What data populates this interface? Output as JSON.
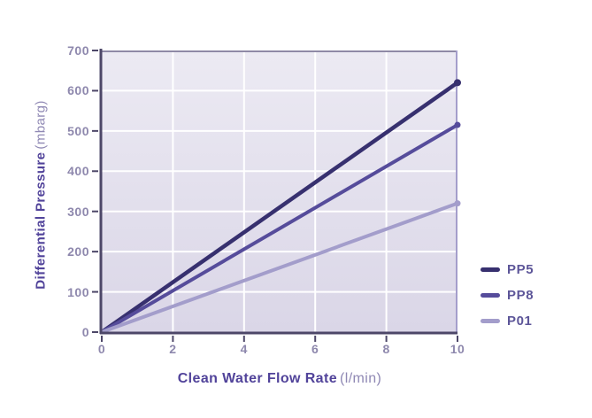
{
  "labels": {
    "y_title": "Differential Pressure",
    "y_unit": "(mbarg)",
    "x_title": "Clean Water Flow Rate",
    "x_unit": "(l/min)"
  },
  "chart_data": {
    "type": "line",
    "title": "",
    "xlabel": "Clean Water Flow Rate (l/min)",
    "ylabel": "Differential Pressure (mbarg)",
    "xlim": [
      0,
      10
    ],
    "ylim": [
      0,
      700
    ],
    "xticks": [
      0,
      2,
      4,
      6,
      8,
      10
    ],
    "yticks": [
      0,
      100,
      200,
      300,
      400,
      500,
      600,
      700
    ],
    "grid": true,
    "legend_position": "right",
    "x": [
      0,
      10
    ],
    "series": [
      {
        "name": "PP5",
        "values": [
          0,
          620
        ],
        "color": "#37306f",
        "stroke_width": 4.5,
        "dot_radius": 4
      },
      {
        "name": "PP8",
        "values": [
          0,
          515
        ],
        "color": "#564c9b",
        "stroke_width": 4,
        "dot_radius": 3.5
      },
      {
        "name": "P01",
        "values": [
          0,
          320
        ],
        "color": "#a39dcb",
        "stroke_width": 4,
        "dot_radius": 3.5
      }
    ],
    "colors": {
      "plot_bg_top": "#eceaf3",
      "plot_bg_bottom": "#dad6e7",
      "gridline": "#ffffff",
      "axis": "#4d4768",
      "border_top": "#8f8aa6",
      "border_right": "#a49ecb",
      "tick_label": "#8e88ad",
      "axis_title": "#51439a",
      "axis_unit": "#8f88b4",
      "legend_label": "#5d5699",
      "page_background": "#ffffff"
    }
  }
}
